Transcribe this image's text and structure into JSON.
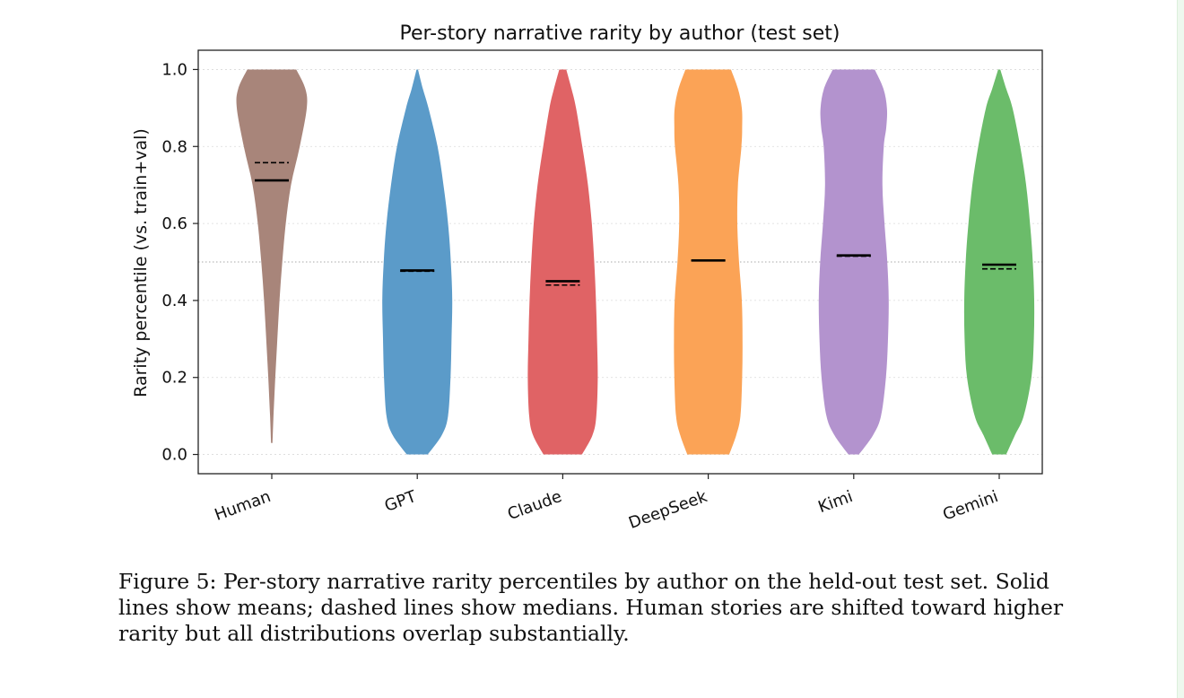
{
  "chart_data": {
    "type": "violin",
    "title": "Per-story narrative rarity by author (test set)",
    "xlabel": "",
    "ylabel": "Rarity percentile (vs. train+val)",
    "ylim": [
      -0.05,
      1.05
    ],
    "yticks": [
      "0.0",
      "0.2",
      "0.4",
      "0.6",
      "0.8",
      "1.0"
    ],
    "reference_line": 0.5,
    "grid": "horizontal, faint dotted",
    "categories": [
      "Human",
      "GPT",
      "Claude",
      "DeepSeek",
      "Kimi",
      "Gemini"
    ],
    "series": [
      {
        "name": "Human",
        "color": "#a8857a",
        "mean": 0.712,
        "median": 0.758,
        "min": 0.03,
        "max": 1.0,
        "density_y": [
          0.03,
          0.1,
          0.2,
          0.3,
          0.4,
          0.5,
          0.6,
          0.7,
          0.8,
          0.9,
          0.95,
          1.0
        ],
        "density_w": [
          0.02,
          0.05,
          0.1,
          0.16,
          0.22,
          0.3,
          0.4,
          0.55,
          0.8,
          1.0,
          0.96,
          0.7
        ]
      },
      {
        "name": "GPT",
        "color": "#5b9bc9",
        "mean": 0.478,
        "median": 0.476,
        "min": 0.0,
        "max": 1.0,
        "density_y": [
          0.0,
          0.05,
          0.1,
          0.2,
          0.3,
          0.4,
          0.5,
          0.6,
          0.7,
          0.8,
          0.9,
          0.95,
          1.0
        ],
        "density_w": [
          0.3,
          0.7,
          0.88,
          0.95,
          0.98,
          1.0,
          0.96,
          0.88,
          0.75,
          0.58,
          0.32,
          0.16,
          0.02
        ]
      },
      {
        "name": "Claude",
        "color": "#e06365",
        "mean": 0.45,
        "median": 0.44,
        "min": 0.0,
        "max": 1.0,
        "density_y": [
          0.0,
          0.05,
          0.1,
          0.2,
          0.3,
          0.4,
          0.5,
          0.6,
          0.7,
          0.8,
          0.9,
          0.95,
          1.0
        ],
        "density_w": [
          0.55,
          0.85,
          0.96,
          1.0,
          0.98,
          0.95,
          0.9,
          0.83,
          0.72,
          0.56,
          0.38,
          0.25,
          0.1
        ]
      },
      {
        "name": "DeepSeek",
        "color": "#fba356",
        "mean": 0.504,
        "median": 0.504,
        "min": 0.0,
        "max": 1.0,
        "density_y": [
          0.0,
          0.05,
          0.1,
          0.2,
          0.3,
          0.4,
          0.5,
          0.6,
          0.7,
          0.8,
          0.85,
          0.9,
          0.95,
          1.0
        ],
        "density_w": [
          0.6,
          0.8,
          0.92,
          0.97,
          0.98,
          0.96,
          0.88,
          0.83,
          0.85,
          0.95,
          0.97,
          0.96,
          0.85,
          0.65
        ]
      },
      {
        "name": "Kimi",
        "color": "#b393ce",
        "mean": 0.517,
        "median": 0.515,
        "min": 0.0,
        "max": 1.0,
        "density_y": [
          0.0,
          0.05,
          0.1,
          0.2,
          0.3,
          0.4,
          0.5,
          0.6,
          0.7,
          0.8,
          0.85,
          0.9,
          0.95,
          1.0
        ],
        "density_w": [
          0.15,
          0.55,
          0.78,
          0.92,
          0.98,
          1.0,
          0.96,
          0.88,
          0.82,
          0.86,
          0.93,
          0.95,
          0.85,
          0.6
        ]
      },
      {
        "name": "Gemini",
        "color": "#6bbc6a",
        "mean": 0.493,
        "median": 0.482,
        "min": 0.0,
        "max": 1.0,
        "density_y": [
          0.0,
          0.05,
          0.1,
          0.2,
          0.3,
          0.4,
          0.5,
          0.6,
          0.7,
          0.8,
          0.9,
          0.95,
          1.0
        ],
        "density_w": [
          0.2,
          0.45,
          0.7,
          0.92,
          0.99,
          1.0,
          0.96,
          0.88,
          0.77,
          0.6,
          0.38,
          0.2,
          0.03
        ]
      }
    ]
  },
  "caption": "Figure 5: Per-story narrative rarity percentiles by author on the held-out test set. Solid lines show means; dashed lines show medians. Human stories are shifted toward higher rarity but all distributions overlap substantially."
}
